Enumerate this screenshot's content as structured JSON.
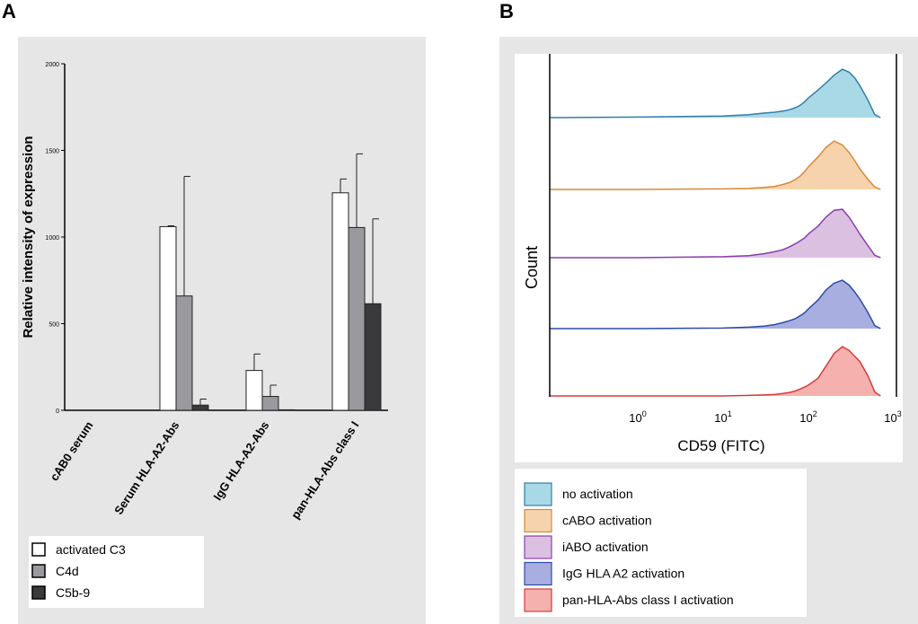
{
  "panels": {
    "a_label": "A",
    "b_label": "B"
  },
  "chart_data": [
    {
      "panel": "A",
      "type": "bar",
      "title": "",
      "xlabel": "",
      "ylabel": "Relative intensity of expression",
      "ylim": [
        0,
        2000
      ],
      "yticks": [
        0,
        500,
        1000,
        1500,
        2000
      ],
      "yticklabels": [
        "0",
        "500",
        "1000",
        "1500",
        "2000"
      ],
      "categories": [
        "cAB0 serum",
        "Serum HLA-A2-Abs",
        "IgG HLA-A2-Abs",
        "pan-HLA-Abs class I"
      ],
      "series": [
        {
          "name": "activated C3",
          "color": "#ffffff",
          "values": [
            0,
            1060,
            230,
            1255
          ],
          "errors": [
            0,
            5,
            95,
            80
          ]
        },
        {
          "name": "C4d",
          "color": "#9a9a9e",
          "values": [
            0,
            660,
            80,
            1055
          ],
          "errors": [
            0,
            690,
            65,
            425
          ]
        },
        {
          "name": "C5b-9",
          "color": "#3a3a3c",
          "values": [
            0,
            30,
            3,
            615
          ],
          "errors": [
            0,
            35,
            0,
            490
          ]
        }
      ],
      "legend": [
        "activated C3",
        "C4d",
        "C5b-9"
      ],
      "legend_position": "bottom-left",
      "grid": false
    },
    {
      "panel": "B",
      "type": "area",
      "title": "",
      "xlabel": "CD59 (FITC)",
      "ylabel": "Count",
      "xscale": "log",
      "xlim": [
        0.1,
        1000
      ],
      "xticklabels": [
        {
          "base": "10",
          "exp": "0",
          "value": 1
        },
        {
          "base": "10",
          "exp": "1",
          "value": 10
        },
        {
          "base": "10",
          "exp": "2",
          "value": 100
        },
        {
          "base": "10",
          "exp": "3",
          "value": 1000
        }
      ],
      "x": [
        0.13,
        1,
        10,
        20,
        30,
        40,
        50,
        60,
        70,
        80,
        90,
        100,
        130,
        160,
        200,
        250,
        300,
        350,
        400,
        500,
        600,
        700
      ],
      "series": [
        {
          "name": "no activation",
          "color": "#2e7fa6",
          "fill": "#a9d8e6",
          "values": [
            0.0,
            0.01,
            0.03,
            0.06,
            0.09,
            0.11,
            0.13,
            0.16,
            0.2,
            0.25,
            0.32,
            0.4,
            0.56,
            0.7,
            0.86,
            0.98,
            0.92,
            0.8,
            0.65,
            0.35,
            0.06,
            0.0
          ]
        },
        {
          "name": "cABO activation",
          "color": "#d48a3a",
          "fill": "#f6d3ac",
          "values": [
            0.0,
            0.0,
            0.01,
            0.02,
            0.04,
            0.06,
            0.1,
            0.14,
            0.2,
            0.27,
            0.36,
            0.46,
            0.66,
            0.85,
            0.98,
            0.9,
            0.75,
            0.58,
            0.42,
            0.2,
            0.05,
            0.0
          ]
        },
        {
          "name": "iABO activation",
          "color": "#8a3fa8",
          "fill": "#dcc0e2",
          "values": [
            0.0,
            0.0,
            0.02,
            0.04,
            0.08,
            0.12,
            0.16,
            0.22,
            0.28,
            0.34,
            0.4,
            0.48,
            0.64,
            0.82,
            0.96,
            0.98,
            0.82,
            0.64,
            0.48,
            0.24,
            0.05,
            0.0
          ]
        },
        {
          "name": "IgG HLA A2 activation",
          "color": "#2d4aa8",
          "fill": "#a9aee0",
          "values": [
            0.0,
            0.0,
            0.01,
            0.03,
            0.05,
            0.08,
            0.12,
            0.16,
            0.2,
            0.26,
            0.32,
            0.4,
            0.58,
            0.78,
            0.92,
            0.98,
            0.88,
            0.74,
            0.6,
            0.32,
            0.06,
            0.0
          ]
        },
        {
          "name": "pan-HLA-Abs class I activation",
          "color": "#d93a3a",
          "fill": "#f5b1ad",
          "values": [
            0.0,
            0.0,
            0.0,
            0.01,
            0.02,
            0.03,
            0.05,
            0.07,
            0.1,
            0.14,
            0.18,
            0.22,
            0.36,
            0.6,
            0.86,
            1.0,
            0.92,
            0.8,
            0.7,
            0.4,
            0.08,
            0.0
          ]
        }
      ],
      "legend": [
        "no activation",
        "cABO activation",
        "iABO activation",
        "IgG HLA A2 activation",
        "pan-HLA-Abs class I activation"
      ],
      "legend_position": "bottom",
      "grid": false
    }
  ]
}
